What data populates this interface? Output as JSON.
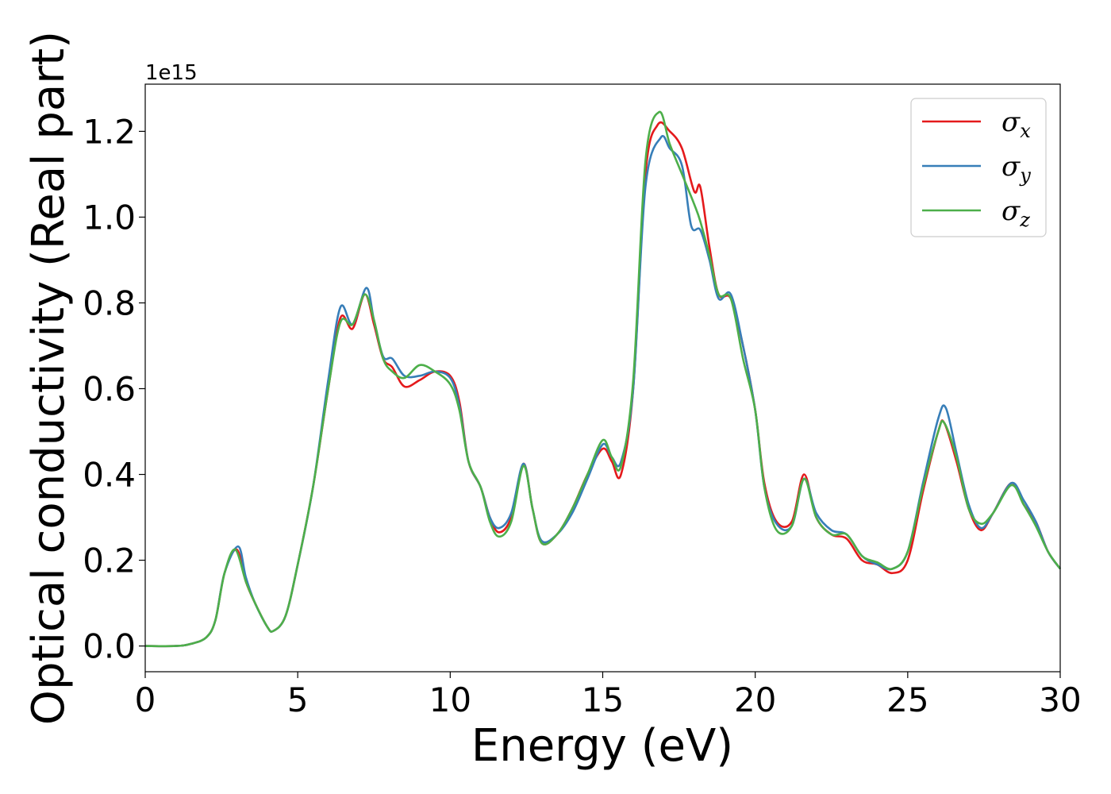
{
  "chart_data": {
    "type": "line",
    "title": "",
    "xlabel": "Energy (eV)",
    "ylabel": "Optical conductivity (Real part)",
    "y_offset_label": "1e15",
    "xlim": [
      0,
      30
    ],
    "ylim": [
      -0.06,
      1.31
    ],
    "xticks": [
      0,
      5,
      10,
      15,
      20,
      25,
      30
    ],
    "xtick_labels": [
      "0",
      "5",
      "10",
      "15",
      "20",
      "25",
      "30"
    ],
    "yticks": [
      0.0,
      0.2,
      0.4,
      0.6,
      0.8,
      1.0,
      1.2
    ],
    "ytick_labels": [
      "0.0",
      "0.2",
      "0.4",
      "0.6",
      "0.8",
      "1.0",
      "1.2"
    ],
    "grid": false,
    "legend_position": "top-right",
    "series": [
      {
        "name": "σ",
        "subscript": "x",
        "color": "#e41a1c",
        "points": [
          [
            0,
            0
          ],
          [
            1,
            0.0
          ],
          [
            1.5,
            0.005
          ],
          [
            2,
            0.02
          ],
          [
            2.3,
            0.06
          ],
          [
            2.6,
            0.17
          ],
          [
            3.0,
            0.225
          ],
          [
            3.3,
            0.15
          ],
          [
            3.6,
            0.1
          ],
          [
            4.0,
            0.045
          ],
          [
            4.2,
            0.035
          ],
          [
            4.6,
            0.07
          ],
          [
            5.0,
            0.19
          ],
          [
            5.5,
            0.37
          ],
          [
            6.0,
            0.6
          ],
          [
            6.4,
            0.765
          ],
          [
            6.8,
            0.74
          ],
          [
            7.2,
            0.82
          ],
          [
            7.5,
            0.75
          ],
          [
            7.8,
            0.67
          ],
          [
            8.1,
            0.65
          ],
          [
            8.5,
            0.605
          ],
          [
            9.0,
            0.62
          ],
          [
            9.5,
            0.64
          ],
          [
            10.0,
            0.63
          ],
          [
            10.3,
            0.57
          ],
          [
            10.6,
            0.43
          ],
          [
            11.0,
            0.37
          ],
          [
            11.3,
            0.3
          ],
          [
            11.6,
            0.265
          ],
          [
            12.0,
            0.3
          ],
          [
            12.4,
            0.425
          ],
          [
            12.7,
            0.32
          ],
          [
            13.0,
            0.24
          ],
          [
            13.5,
            0.26
          ],
          [
            14.0,
            0.32
          ],
          [
            14.5,
            0.4
          ],
          [
            15.0,
            0.46
          ],
          [
            15.3,
            0.43
          ],
          [
            15.6,
            0.4
          ],
          [
            16.0,
            0.6
          ],
          [
            16.4,
            1.1
          ],
          [
            16.8,
            1.215
          ],
          [
            17.2,
            1.2
          ],
          [
            17.6,
            1.16
          ],
          [
            18.0,
            1.06
          ],
          [
            18.2,
            1.07
          ],
          [
            18.5,
            0.93
          ],
          [
            18.8,
            0.82
          ],
          [
            19.2,
            0.81
          ],
          [
            19.6,
            0.7
          ],
          [
            20.0,
            0.55
          ],
          [
            20.3,
            0.38
          ],
          [
            20.7,
            0.29
          ],
          [
            21.2,
            0.29
          ],
          [
            21.6,
            0.4
          ],
          [
            22.0,
            0.3
          ],
          [
            22.5,
            0.26
          ],
          [
            23.0,
            0.25
          ],
          [
            23.5,
            0.2
          ],
          [
            24.0,
            0.19
          ],
          [
            24.5,
            0.17
          ],
          [
            25.0,
            0.2
          ],
          [
            25.5,
            0.36
          ],
          [
            26.0,
            0.5
          ],
          [
            26.2,
            0.52
          ],
          [
            26.6,
            0.43
          ],
          [
            27.0,
            0.32
          ],
          [
            27.4,
            0.27
          ],
          [
            27.8,
            0.31
          ],
          [
            28.4,
            0.38
          ],
          [
            28.8,
            0.33
          ],
          [
            29.2,
            0.29
          ],
          [
            29.6,
            0.22
          ],
          [
            30,
            0.18
          ]
        ]
      },
      {
        "name": "σ",
        "subscript": "y",
        "color": "#377eb8",
        "points": [
          [
            0,
            0
          ],
          [
            1,
            0.0
          ],
          [
            1.5,
            0.005
          ],
          [
            2,
            0.02
          ],
          [
            2.3,
            0.06
          ],
          [
            2.6,
            0.17
          ],
          [
            3.05,
            0.232
          ],
          [
            3.3,
            0.16
          ],
          [
            3.6,
            0.1
          ],
          [
            4.0,
            0.045
          ],
          [
            4.2,
            0.035
          ],
          [
            4.6,
            0.07
          ],
          [
            5.0,
            0.19
          ],
          [
            5.5,
            0.37
          ],
          [
            6.0,
            0.62
          ],
          [
            6.4,
            0.79
          ],
          [
            6.8,
            0.75
          ],
          [
            7.25,
            0.835
          ],
          [
            7.5,
            0.76
          ],
          [
            7.8,
            0.675
          ],
          [
            8.1,
            0.67
          ],
          [
            8.5,
            0.63
          ],
          [
            9.0,
            0.63
          ],
          [
            9.5,
            0.64
          ],
          [
            10.0,
            0.625
          ],
          [
            10.3,
            0.56
          ],
          [
            10.6,
            0.43
          ],
          [
            11.0,
            0.37
          ],
          [
            11.3,
            0.3
          ],
          [
            11.6,
            0.275
          ],
          [
            12.0,
            0.31
          ],
          [
            12.4,
            0.425
          ],
          [
            12.7,
            0.32
          ],
          [
            13.0,
            0.245
          ],
          [
            13.5,
            0.26
          ],
          [
            14.0,
            0.31
          ],
          [
            14.5,
            0.39
          ],
          [
            15.0,
            0.47
          ],
          [
            15.3,
            0.44
          ],
          [
            15.6,
            0.43
          ],
          [
            16.0,
            0.6
          ],
          [
            16.4,
            1.07
          ],
          [
            16.9,
            1.185
          ],
          [
            17.2,
            1.16
          ],
          [
            17.6,
            1.12
          ],
          [
            17.9,
            0.98
          ],
          [
            18.2,
            0.97
          ],
          [
            18.5,
            0.9
          ],
          [
            18.8,
            0.81
          ],
          [
            19.2,
            0.82
          ],
          [
            19.6,
            0.7
          ],
          [
            20.0,
            0.55
          ],
          [
            20.3,
            0.37
          ],
          [
            20.7,
            0.285
          ],
          [
            21.2,
            0.28
          ],
          [
            21.6,
            0.39
          ],
          [
            22.0,
            0.31
          ],
          [
            22.5,
            0.27
          ],
          [
            23.0,
            0.26
          ],
          [
            23.5,
            0.21
          ],
          [
            24.0,
            0.19
          ],
          [
            24.5,
            0.18
          ],
          [
            25.0,
            0.22
          ],
          [
            25.5,
            0.38
          ],
          [
            26.0,
            0.53
          ],
          [
            26.25,
            0.555
          ],
          [
            26.6,
            0.45
          ],
          [
            27.0,
            0.33
          ],
          [
            27.4,
            0.275
          ],
          [
            27.8,
            0.31
          ],
          [
            28.4,
            0.38
          ],
          [
            28.8,
            0.34
          ],
          [
            29.2,
            0.29
          ],
          [
            29.6,
            0.22
          ],
          [
            30,
            0.18
          ]
        ]
      },
      {
        "name": "σ",
        "subscript": "z",
        "color": "#4daf4a",
        "points": [
          [
            0,
            0
          ],
          [
            1,
            0.0
          ],
          [
            1.5,
            0.005
          ],
          [
            2,
            0.02
          ],
          [
            2.3,
            0.06
          ],
          [
            2.6,
            0.17
          ],
          [
            2.95,
            0.225
          ],
          [
            3.3,
            0.15
          ],
          [
            3.6,
            0.1
          ],
          [
            4.0,
            0.045
          ],
          [
            4.2,
            0.035
          ],
          [
            4.6,
            0.07
          ],
          [
            5.0,
            0.19
          ],
          [
            5.5,
            0.37
          ],
          [
            6.0,
            0.6
          ],
          [
            6.4,
            0.755
          ],
          [
            6.8,
            0.75
          ],
          [
            7.2,
            0.82
          ],
          [
            7.5,
            0.76
          ],
          [
            7.8,
            0.67
          ],
          [
            8.1,
            0.64
          ],
          [
            8.5,
            0.625
          ],
          [
            9.0,
            0.655
          ],
          [
            9.5,
            0.64
          ],
          [
            10.0,
            0.61
          ],
          [
            10.3,
            0.55
          ],
          [
            10.6,
            0.43
          ],
          [
            11.0,
            0.37
          ],
          [
            11.3,
            0.29
          ],
          [
            11.6,
            0.255
          ],
          [
            12.0,
            0.29
          ],
          [
            12.4,
            0.42
          ],
          [
            12.7,
            0.32
          ],
          [
            13.0,
            0.24
          ],
          [
            13.5,
            0.26
          ],
          [
            14.0,
            0.32
          ],
          [
            14.5,
            0.4
          ],
          [
            15.0,
            0.48
          ],
          [
            15.3,
            0.44
          ],
          [
            15.6,
            0.42
          ],
          [
            16.0,
            0.62
          ],
          [
            16.4,
            1.13
          ],
          [
            16.85,
            1.245
          ],
          [
            17.2,
            1.17
          ],
          [
            17.6,
            1.1
          ],
          [
            18.0,
            1.03
          ],
          [
            18.2,
            0.99
          ],
          [
            18.5,
            0.91
          ],
          [
            18.8,
            0.82
          ],
          [
            19.2,
            0.81
          ],
          [
            19.6,
            0.67
          ],
          [
            20.0,
            0.55
          ],
          [
            20.3,
            0.37
          ],
          [
            20.7,
            0.27
          ],
          [
            21.2,
            0.28
          ],
          [
            21.6,
            0.39
          ],
          [
            22.0,
            0.3
          ],
          [
            22.5,
            0.26
          ],
          [
            23.0,
            0.26
          ],
          [
            23.5,
            0.21
          ],
          [
            24.0,
            0.195
          ],
          [
            24.5,
            0.18
          ],
          [
            25.0,
            0.22
          ],
          [
            25.5,
            0.37
          ],
          [
            26.0,
            0.5
          ],
          [
            26.2,
            0.52
          ],
          [
            26.6,
            0.44
          ],
          [
            27.0,
            0.32
          ],
          [
            27.4,
            0.285
          ],
          [
            27.8,
            0.31
          ],
          [
            28.4,
            0.375
          ],
          [
            28.8,
            0.33
          ],
          [
            29.2,
            0.28
          ],
          [
            29.6,
            0.22
          ],
          [
            30,
            0.18
          ]
        ]
      }
    ]
  }
}
